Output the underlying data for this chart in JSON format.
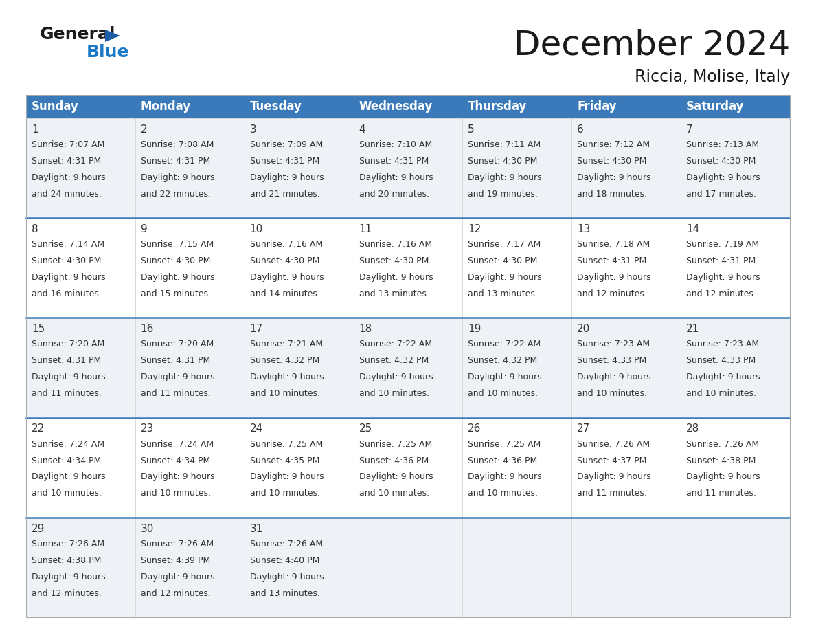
{
  "title": "December 2024",
  "subtitle": "Riccia, Molise, Italy",
  "header_bg_color": "#3a7aba",
  "header_text_color": "#ffffff",
  "days_of_week": [
    "Sunday",
    "Monday",
    "Tuesday",
    "Wednesday",
    "Thursday",
    "Friday",
    "Saturday"
  ],
  "cell_bg_even": "#eef2f7",
  "cell_bg_odd": "#ffffff",
  "row_line_color": "#3a7aba",
  "calendar_data": [
    [
      {
        "day": 1,
        "sunrise": "7:07 AM",
        "sunset": "4:31 PM",
        "daylight": "9 hours and 24 minutes."
      },
      {
        "day": 2,
        "sunrise": "7:08 AM",
        "sunset": "4:31 PM",
        "daylight": "9 hours and 22 minutes."
      },
      {
        "day": 3,
        "sunrise": "7:09 AM",
        "sunset": "4:31 PM",
        "daylight": "9 hours and 21 minutes."
      },
      {
        "day": 4,
        "sunrise": "7:10 AM",
        "sunset": "4:31 PM",
        "daylight": "9 hours and 20 minutes."
      },
      {
        "day": 5,
        "sunrise": "7:11 AM",
        "sunset": "4:30 PM",
        "daylight": "9 hours and 19 minutes."
      },
      {
        "day": 6,
        "sunrise": "7:12 AM",
        "sunset": "4:30 PM",
        "daylight": "9 hours and 18 minutes."
      },
      {
        "day": 7,
        "sunrise": "7:13 AM",
        "sunset": "4:30 PM",
        "daylight": "9 hours and 17 minutes."
      }
    ],
    [
      {
        "day": 8,
        "sunrise": "7:14 AM",
        "sunset": "4:30 PM",
        "daylight": "9 hours and 16 minutes."
      },
      {
        "day": 9,
        "sunrise": "7:15 AM",
        "sunset": "4:30 PM",
        "daylight": "9 hours and 15 minutes."
      },
      {
        "day": 10,
        "sunrise": "7:16 AM",
        "sunset": "4:30 PM",
        "daylight": "9 hours and 14 minutes."
      },
      {
        "day": 11,
        "sunrise": "7:16 AM",
        "sunset": "4:30 PM",
        "daylight": "9 hours and 13 minutes."
      },
      {
        "day": 12,
        "sunrise": "7:17 AM",
        "sunset": "4:30 PM",
        "daylight": "9 hours and 13 minutes."
      },
      {
        "day": 13,
        "sunrise": "7:18 AM",
        "sunset": "4:31 PM",
        "daylight": "9 hours and 12 minutes."
      },
      {
        "day": 14,
        "sunrise": "7:19 AM",
        "sunset": "4:31 PM",
        "daylight": "9 hours and 12 minutes."
      }
    ],
    [
      {
        "day": 15,
        "sunrise": "7:20 AM",
        "sunset": "4:31 PM",
        "daylight": "9 hours and 11 minutes."
      },
      {
        "day": 16,
        "sunrise": "7:20 AM",
        "sunset": "4:31 PM",
        "daylight": "9 hours and 11 minutes."
      },
      {
        "day": 17,
        "sunrise": "7:21 AM",
        "sunset": "4:32 PM",
        "daylight": "9 hours and 10 minutes."
      },
      {
        "day": 18,
        "sunrise": "7:22 AM",
        "sunset": "4:32 PM",
        "daylight": "9 hours and 10 minutes."
      },
      {
        "day": 19,
        "sunrise": "7:22 AM",
        "sunset": "4:32 PM",
        "daylight": "9 hours and 10 minutes."
      },
      {
        "day": 20,
        "sunrise": "7:23 AM",
        "sunset": "4:33 PM",
        "daylight": "9 hours and 10 minutes."
      },
      {
        "day": 21,
        "sunrise": "7:23 AM",
        "sunset": "4:33 PM",
        "daylight": "9 hours and 10 minutes."
      }
    ],
    [
      {
        "day": 22,
        "sunrise": "7:24 AM",
        "sunset": "4:34 PM",
        "daylight": "9 hours and 10 minutes."
      },
      {
        "day": 23,
        "sunrise": "7:24 AM",
        "sunset": "4:34 PM",
        "daylight": "9 hours and 10 minutes."
      },
      {
        "day": 24,
        "sunrise": "7:25 AM",
        "sunset": "4:35 PM",
        "daylight": "9 hours and 10 minutes."
      },
      {
        "day": 25,
        "sunrise": "7:25 AM",
        "sunset": "4:36 PM",
        "daylight": "9 hours and 10 minutes."
      },
      {
        "day": 26,
        "sunrise": "7:25 AM",
        "sunset": "4:36 PM",
        "daylight": "9 hours and 10 minutes."
      },
      {
        "day": 27,
        "sunrise": "7:26 AM",
        "sunset": "4:37 PM",
        "daylight": "9 hours and 11 minutes."
      },
      {
        "day": 28,
        "sunrise": "7:26 AM",
        "sunset": "4:38 PM",
        "daylight": "9 hours and 11 minutes."
      }
    ],
    [
      {
        "day": 29,
        "sunrise": "7:26 AM",
        "sunset": "4:38 PM",
        "daylight": "9 hours and 12 minutes."
      },
      {
        "day": 30,
        "sunrise": "7:26 AM",
        "sunset": "4:39 PM",
        "daylight": "9 hours and 12 minutes."
      },
      {
        "day": 31,
        "sunrise": "7:26 AM",
        "sunset": "4:40 PM",
        "daylight": "9 hours and 13 minutes."
      },
      null,
      null,
      null,
      null
    ]
  ],
  "logo_triangle_color": "#1a5fa8",
  "logo_blue_color": "#1a7ac8",
  "title_fontsize": 36,
  "subtitle_fontsize": 17,
  "header_fontsize": 12,
  "day_num_fontsize": 11,
  "cell_text_fontsize": 9.0
}
